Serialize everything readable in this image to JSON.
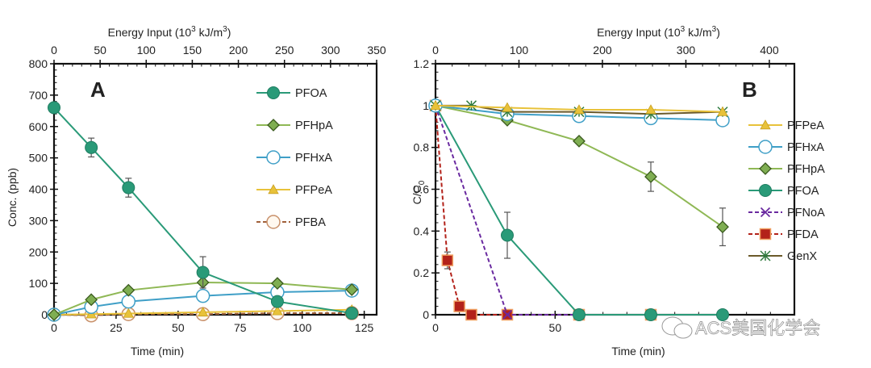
{
  "watermark": "ACS美国化学会",
  "chart_data": [
    {
      "type": "line",
      "panel": "A",
      "title": "",
      "xlabel": "Time (min)",
      "ylabel": "Conc. (ppb)",
      "top_xlabel_main": "Energy Input (10",
      "top_xlabel_sup1": "3",
      "top_xlabel_mid": " kJ/m",
      "top_xlabel_sup2": "3",
      "top_xlabel_end": ")",
      "xlim": [
        0,
        130
      ],
      "ylim": [
        0,
        800
      ],
      "top_xlim": [
        0,
        350
      ],
      "xticks": [
        0,
        25,
        50,
        75,
        100,
        125
      ],
      "yticks": [
        0,
        100,
        200,
        300,
        400,
        500,
        600,
        700,
        800
      ],
      "top_xticks": [
        0,
        50,
        100,
        150,
        200,
        250,
        300,
        350
      ],
      "grid": false,
      "legend_position": "right",
      "x": [
        0,
        15,
        30,
        60,
        90,
        120
      ],
      "series": [
        {
          "name": "PFOA",
          "values": [
            660,
            533,
            405,
            135,
            42,
            5
          ],
          "errors": [
            0,
            30,
            30,
            50,
            0,
            0
          ],
          "color": "#2a9a78",
          "marker": "filled-circle",
          "dash": false
        },
        {
          "name": "PFHpA",
          "values": [
            0,
            48,
            78,
            103,
            100,
            80
          ],
          "errors": [
            0,
            0,
            0,
            8,
            0,
            0
          ],
          "color": "#8fb855",
          "marker": "diamond",
          "dash": false
        },
        {
          "name": "PFHxA",
          "values": [
            0,
            25,
            42,
            60,
            72,
            77
          ],
          "errors": [
            0,
            0,
            0,
            0,
            0,
            12
          ],
          "color": "#3f9fc7",
          "marker": "open-circle",
          "dash": false
        },
        {
          "name": "PFPeA",
          "values": [
            0,
            2,
            4,
            8,
            12,
            16
          ],
          "errors": [
            0,
            0,
            0,
            0,
            0,
            5
          ],
          "color": "#e8c23a",
          "marker": "triangle",
          "dash": false
        },
        {
          "name": "PFBA",
          "values": [
            0,
            -2,
            2,
            2,
            5,
            5
          ],
          "errors": [
            0,
            0,
            0,
            5,
            5,
            5
          ],
          "color": "#a0603a",
          "marker": "open-circle-orange",
          "dash": true
        }
      ]
    },
    {
      "type": "line",
      "panel": "B",
      "title": "",
      "xlabel": "Time (min)",
      "ylabel_main": "C/C",
      "ylabel_sub": "0",
      "top_xlabel_main": "Energy Input (10",
      "top_xlabel_sup1": "3",
      "top_xlabel_mid": " kJ/m",
      "top_xlabel_sup2": "3",
      "top_xlabel_end": ")",
      "xlim": [
        0,
        150
      ],
      "ylim": [
        0,
        1.2
      ],
      "top_xlim": [
        0,
        430
      ],
      "xticks": [
        0,
        50
      ],
      "xtick_labels": [
        "0",
        "50"
      ],
      "yticks": [
        0,
        0.2,
        0.4,
        0.6,
        0.8,
        1,
        1.2
      ],
      "ytick_labels": [
        "0",
        "0.2",
        "0.4",
        "0.6",
        "0.8",
        "1",
        "1.2"
      ],
      "top_xticks": [
        0,
        100,
        200,
        300,
        400
      ],
      "grid": false,
      "legend_position": "right",
      "series": [
        {
          "name": "PFPeA",
          "x": [
            0,
            30,
            60,
            90,
            120
          ],
          "values": [
            1.0,
            0.99,
            0.98,
            0.98,
            0.97
          ],
          "errors": [
            0,
            0,
            0,
            0,
            0
          ],
          "color": "#e8c23a",
          "marker": "triangle",
          "dash": false
        },
        {
          "name": "PFHxA",
          "x": [
            0,
            30,
            60,
            90,
            120
          ],
          "values": [
            1.0,
            0.96,
            0.95,
            0.94,
            0.93
          ],
          "errors": [
            0,
            0,
            0,
            0,
            0
          ],
          "color": "#3f9fc7",
          "marker": "open-circle",
          "dash": false
        },
        {
          "name": "PFHpA",
          "x": [
            0,
            30,
            60,
            90,
            120
          ],
          "values": [
            1.0,
            0.93,
            0.83,
            0.66,
            0.42
          ],
          "errors": [
            0,
            0,
            0,
            0.07,
            0.09
          ],
          "color": "#8fb855",
          "marker": "diamond",
          "dash": false
        },
        {
          "name": "PFOA",
          "x": [
            0,
            30,
            60,
            90,
            120
          ],
          "values": [
            1.0,
            0.38,
            0,
            0,
            0
          ],
          "errors": [
            0,
            0.11,
            0,
            0,
            0
          ],
          "color": "#2a9a78",
          "marker": "filled-circle",
          "dash": false
        },
        {
          "name": "PFNoA",
          "x": [
            0,
            30,
            60,
            90,
            120
          ],
          "values": [
            1.0,
            0,
            0,
            0,
            0
          ],
          "errors": [
            0,
            0,
            0,
            0,
            0
          ],
          "color": "#6a2aa0",
          "marker": "x",
          "dash": true
        },
        {
          "name": "PFDA",
          "x": [
            0,
            5,
            10,
            15,
            30,
            60,
            90
          ],
          "values": [
            1.0,
            0.26,
            0.04,
            0,
            0,
            0,
            0
          ],
          "errors": [
            0,
            0.04,
            0,
            0,
            0,
            0,
            0
          ],
          "color": "#b3221a",
          "marker": "square",
          "dash": true
        },
        {
          "name": "GenX",
          "x": [
            0,
            15,
            30,
            60,
            90,
            120
          ],
          "values": [
            1.0,
            1.0,
            0.97,
            0.97,
            0.96,
            0.97
          ],
          "errors": [
            0,
            0,
            0,
            0,
            0,
            0
          ],
          "color": "#6b5a2a",
          "marker": "asterisk",
          "dash": false
        }
      ]
    }
  ]
}
